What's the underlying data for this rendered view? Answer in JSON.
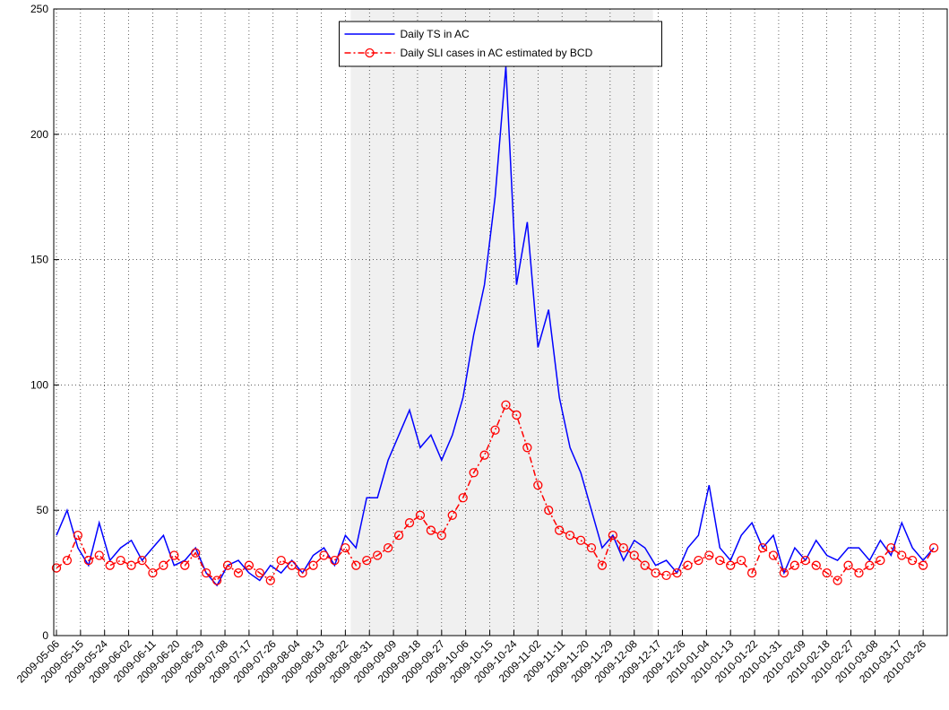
{
  "chart_data": {
    "type": "line",
    "x": [
      "2009-05-06",
      "2009-05-10",
      "2009-05-14",
      "2009-05-18",
      "2009-05-22",
      "2009-05-26",
      "2009-05-30",
      "2009-06-03",
      "2009-06-07",
      "2009-06-11",
      "2009-06-15",
      "2009-06-19",
      "2009-06-23",
      "2009-06-27",
      "2009-07-01",
      "2009-07-05",
      "2009-07-09",
      "2009-07-13",
      "2009-07-17",
      "2009-07-21",
      "2009-07-25",
      "2009-07-29",
      "2009-08-02",
      "2009-08-06",
      "2009-08-10",
      "2009-08-14",
      "2009-08-18",
      "2009-08-22",
      "2009-08-26",
      "2009-08-30",
      "2009-09-03",
      "2009-09-07",
      "2009-09-11",
      "2009-09-15",
      "2009-09-19",
      "2009-09-23",
      "2009-09-27",
      "2009-10-01",
      "2009-10-05",
      "2009-10-09",
      "2009-10-13",
      "2009-10-17",
      "2009-10-21",
      "2009-10-25",
      "2009-10-29",
      "2009-11-02",
      "2009-11-06",
      "2009-11-10",
      "2009-11-14",
      "2009-11-18",
      "2009-11-22",
      "2009-11-26",
      "2009-11-30",
      "2009-12-04",
      "2009-12-08",
      "2009-12-12",
      "2009-12-16",
      "2009-12-20",
      "2009-12-24",
      "2009-12-28",
      "2010-01-01",
      "2010-01-05",
      "2010-01-09",
      "2010-01-13",
      "2010-01-17",
      "2010-01-21",
      "2010-01-25",
      "2010-01-29",
      "2010-02-02",
      "2010-02-06",
      "2010-02-10",
      "2010-02-14",
      "2010-02-18",
      "2010-02-22",
      "2010-02-26",
      "2010-03-02",
      "2010-03-06",
      "2010-03-10",
      "2010-03-14",
      "2010-03-18",
      "2010-03-22",
      "2010-03-26",
      "2010-03-30"
    ],
    "series": [
      {
        "name": "Daily TS in AC",
        "color": "#0000ff",
        "style": "solid",
        "marker": "none",
        "values": [
          40,
          50,
          35,
          28,
          45,
          30,
          35,
          38,
          30,
          35,
          40,
          28,
          30,
          35,
          25,
          20,
          28,
          30,
          25,
          22,
          28,
          25,
          30,
          25,
          32,
          35,
          28,
          40,
          35,
          55,
          55,
          70,
          80,
          90,
          75,
          80,
          70,
          80,
          95,
          120,
          140,
          175,
          227,
          140,
          165,
          115,
          130,
          95,
          75,
          65,
          50,
          35,
          40,
          30,
          38,
          35,
          28,
          30,
          25,
          35,
          40,
          60,
          35,
          30,
          40,
          45,
          35,
          40,
          25,
          35,
          30,
          38,
          32,
          30,
          35,
          35,
          30,
          38,
          32,
          45,
          35,
          30,
          35
        ]
      },
      {
        "name": "Daily SLI cases in AC estimated by BCD",
        "color": "#ff0000",
        "style": "dashdot",
        "marker": "circle",
        "values": [
          27,
          30,
          40,
          30,
          32,
          28,
          30,
          28,
          30,
          25,
          28,
          32,
          28,
          33,
          25,
          22,
          28,
          25,
          28,
          25,
          22,
          30,
          28,
          25,
          28,
          32,
          30,
          35,
          28,
          30,
          32,
          35,
          40,
          45,
          48,
          42,
          40,
          48,
          55,
          65,
          72,
          82,
          92,
          88,
          75,
          60,
          50,
          42,
          40,
          38,
          35,
          28,
          40,
          35,
          32,
          28,
          25,
          24,
          25,
          28,
          30,
          32,
          30,
          28,
          30,
          25,
          35,
          32,
          25,
          28,
          30,
          28,
          25,
          22,
          28,
          25,
          28,
          30,
          35,
          32,
          30,
          28,
          35
        ]
      }
    ],
    "xlim": [
      "2009-05-05",
      "2010-04-04"
    ],
    "xticks": [
      "2009-05-06",
      "2009-05-15",
      "2009-05-24",
      "2009-06-02",
      "2009-06-11",
      "2009-06-20",
      "2009-06-29",
      "2009-07-08",
      "2009-07-17",
      "2009-07-26",
      "2009-08-04",
      "2009-08-13",
      "2009-08-22",
      "2009-08-31",
      "2009-09-09",
      "2009-09-18",
      "2009-09-27",
      "2009-10-06",
      "2009-10-15",
      "2009-10-24",
      "2009-11-02",
      "2009-11-11",
      "2009-11-20",
      "2009-11-29",
      "2009-12-08",
      "2009-12-17",
      "2009-12-26",
      "2010-01-04",
      "2010-01-13",
      "2010-01-22",
      "2010-01-31",
      "2010-02-09",
      "2010-02-18",
      "2010-02-27",
      "2010-03-08",
      "2010-03-17",
      "2010-03-26"
    ],
    "ylim": [
      0,
      250
    ],
    "yticks": [
      0,
      50,
      100,
      150,
      200,
      250
    ],
    "grid": true,
    "shaded_span": [
      "2009-08-24",
      "2009-12-15"
    ],
    "shaded_color": "#f0f0f0",
    "legend": "upper center"
  }
}
